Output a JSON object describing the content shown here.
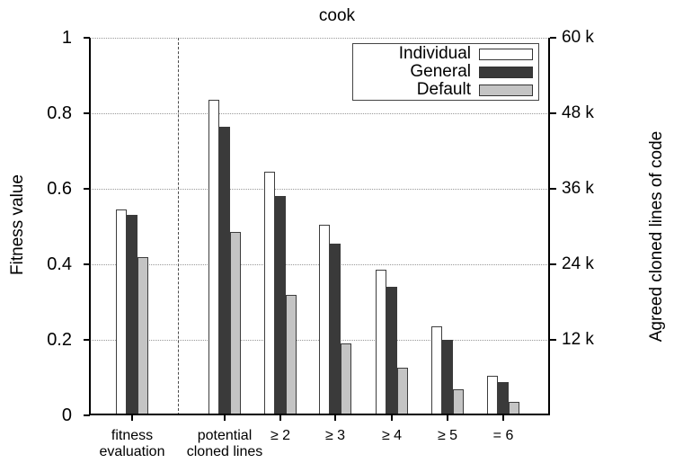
{
  "chart_data": {
    "type": "bar",
    "title": "cook",
    "ylabel": "Fitness value",
    "ylabel_right": "Agreed cloned lines of code",
    "ylim": [
      0,
      1
    ],
    "ylim_right": [
      0,
      60000
    ],
    "y_tick_labels": [
      "1",
      "0.8",
      "0.6",
      "0.4",
      "0.2",
      "0"
    ],
    "y_tick_values": [
      1,
      0.8,
      0.6,
      0.4,
      0.2,
      0
    ],
    "y_tick_labels_right": [
      "60 k",
      "48 k",
      "36 k",
      "24 k",
      "12 k"
    ],
    "y_tick_values_right": [
      60000,
      48000,
      36000,
      24000,
      12000
    ],
    "grid": "horizontal dotted lines at each 0.2",
    "legend_position": "top-right inside plot",
    "categories": [
      "fitness evaluation",
      "potential cloned lines",
      "≥ 2",
      "≥ 3",
      "≥ 4",
      "≥ 5",
      "= 6"
    ],
    "category_label_lines": [
      [
        "fitness",
        "evaluation"
      ],
      [
        "potential",
        "cloned lines"
      ],
      [
        "≥ 2"
      ],
      [
        "≥ 3"
      ],
      [
        "≥ 4"
      ],
      [
        "≥ 5"
      ],
      [
        "= 6"
      ]
    ],
    "separator": {
      "type": "dashed-vertical-line",
      "after_category_index": 0
    },
    "series": [
      {
        "name": "Individual",
        "color": "#ffffff",
        "values": [
          0.545,
          0.835,
          0.645,
          0.505,
          0.385,
          0.235,
          0.105
        ]
      },
      {
        "name": "General",
        "color": "#3a3a3a",
        "values": [
          0.53,
          0.765,
          0.58,
          0.455,
          0.34,
          0.2,
          0.088
        ]
      },
      {
        "name": "Default",
        "color": "#c4c4c4",
        "values": [
          0.42,
          0.485,
          0.32,
          0.19,
          0.125,
          0.07,
          0.035
        ]
      }
    ],
    "colors": {
      "axis": "#000000",
      "grid": "#999999",
      "bar_border": "#3d3d3d",
      "background": "#ffffff"
    }
  }
}
